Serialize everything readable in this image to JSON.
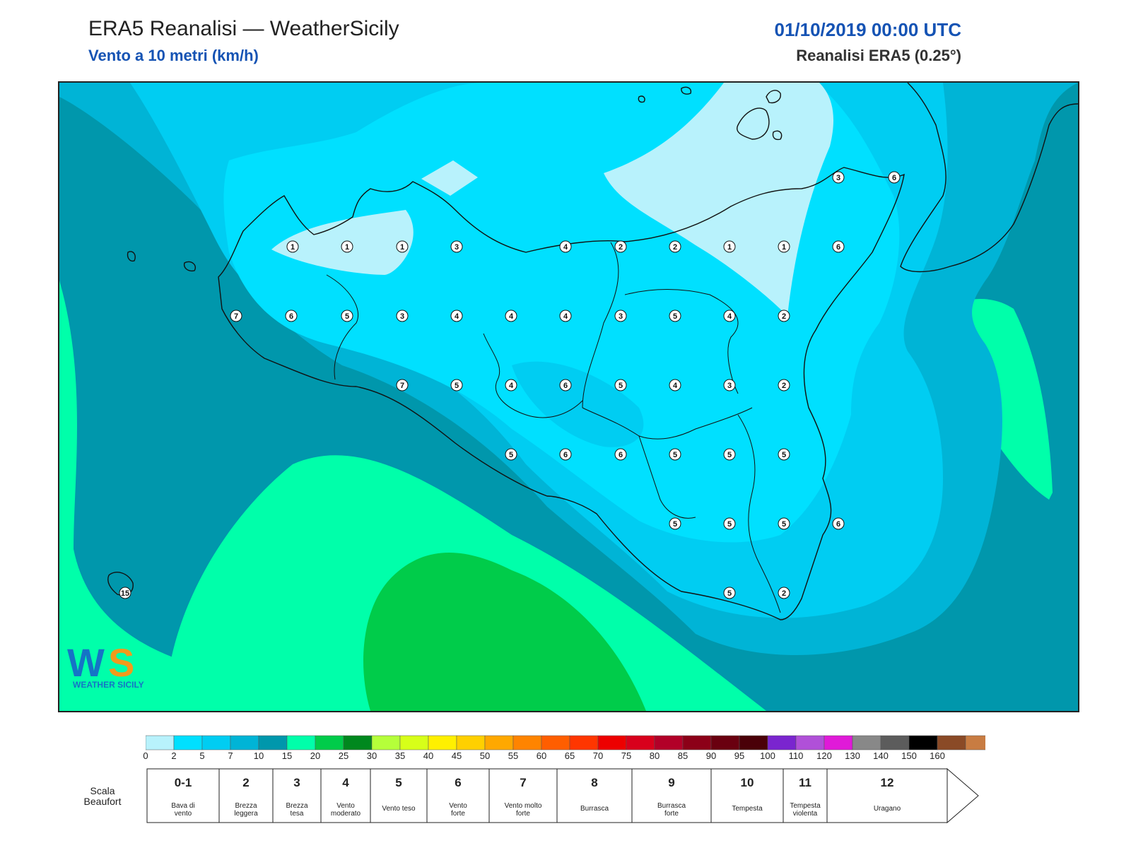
{
  "header": {
    "title": "ERA5 Reanalisi — WeatherSicily",
    "subtitle": "Vento a 10 metri (km/h)",
    "datetime": "01/10/2019 00:00 UTC",
    "product": "Reanalisi ERA5 (0.25°)"
  },
  "map": {
    "station_values": [
      {
        "id": "s01",
        "value": "1"
      },
      {
        "id": "s02",
        "value": "1"
      },
      {
        "id": "s03",
        "value": "1"
      },
      {
        "id": "s04",
        "value": "3"
      },
      {
        "id": "s05",
        "value": "4"
      },
      {
        "id": "s06",
        "value": "2"
      },
      {
        "id": "s07",
        "value": "2"
      },
      {
        "id": "s08",
        "value": "1"
      },
      {
        "id": "s09",
        "value": "1"
      },
      {
        "id": "s10",
        "value": "6"
      },
      {
        "id": "s11",
        "value": "3"
      },
      {
        "id": "s12",
        "value": "6"
      },
      {
        "id": "s13",
        "value": "7"
      },
      {
        "id": "s14",
        "value": "6"
      },
      {
        "id": "s15",
        "value": "5"
      },
      {
        "id": "s16",
        "value": "3"
      },
      {
        "id": "s17",
        "value": "4"
      },
      {
        "id": "s18",
        "value": "4"
      },
      {
        "id": "s19",
        "value": "4"
      },
      {
        "id": "s20",
        "value": "3"
      },
      {
        "id": "s21",
        "value": "5"
      },
      {
        "id": "s22",
        "value": "4"
      },
      {
        "id": "s23",
        "value": "2"
      },
      {
        "id": "s24",
        "value": "7"
      },
      {
        "id": "s25",
        "value": "5"
      },
      {
        "id": "s26",
        "value": "4"
      },
      {
        "id": "s27",
        "value": "6"
      },
      {
        "id": "s28",
        "value": "5"
      },
      {
        "id": "s29",
        "value": "4"
      },
      {
        "id": "s30",
        "value": "3"
      },
      {
        "id": "s31",
        "value": "2"
      },
      {
        "id": "s32",
        "value": "5"
      },
      {
        "id": "s33",
        "value": "6"
      },
      {
        "id": "s34",
        "value": "6"
      },
      {
        "id": "s35",
        "value": "5"
      },
      {
        "id": "s36",
        "value": "5"
      },
      {
        "id": "s37",
        "value": "5"
      },
      {
        "id": "s38",
        "value": "5"
      },
      {
        "id": "s39",
        "value": "5"
      },
      {
        "id": "s40",
        "value": "5"
      },
      {
        "id": "s41",
        "value": "6"
      },
      {
        "id": "s42",
        "value": "5"
      },
      {
        "id": "s43",
        "value": "2"
      },
      {
        "id": "s44",
        "value": "15"
      }
    ],
    "contour_colors": [
      "#b8f2fc",
      "#00e0ff",
      "#00cdf2",
      "#00b4d6",
      "#0097ac",
      "#00ffaa",
      "#00cc4a",
      "#00881e"
    ]
  },
  "colorbar": {
    "ticks": [
      "0",
      "2",
      "5",
      "7",
      "10",
      "15",
      "20",
      "25",
      "30",
      "35",
      "40",
      "45",
      "50",
      "55",
      "60",
      "65",
      "70",
      "75",
      "80",
      "85",
      "90",
      "95",
      "100",
      "110",
      "120",
      "130",
      "140",
      "150",
      "160"
    ],
    "colors": [
      "#b8f2fc",
      "#00e0ff",
      "#00cdf2",
      "#00b4d6",
      "#0097ac",
      "#00ffaa",
      "#00cc4a",
      "#00881e",
      "#b5ff3a",
      "#d7ff19",
      "#fff000",
      "#ffd000",
      "#ffa800",
      "#ff8400",
      "#ff5e00",
      "#ff3600",
      "#ed0000",
      "#d8001c",
      "#b20028",
      "#8c0018",
      "#6a0010",
      "#4a0008",
      "#7a25cf",
      "#b050d8",
      "#e01ad8",
      "#888888",
      "#5c5c5c",
      "#000000",
      "#8a4a26",
      "#c87c42"
    ]
  },
  "beaufort": {
    "label": "Scala Beaufort",
    "classes": [
      {
        "num": "0-1",
        "desc1": "Bava di",
        "desc2": "vento"
      },
      {
        "num": "2",
        "desc1": "Brezza",
        "desc2": "leggera"
      },
      {
        "num": "3",
        "desc1": "Brezza",
        "desc2": "tesa"
      },
      {
        "num": "4",
        "desc1": "Vento",
        "desc2": "moderato"
      },
      {
        "num": "5",
        "desc1": "Vento teso",
        "desc2": ""
      },
      {
        "num": "6",
        "desc1": "Vento",
        "desc2": "forte"
      },
      {
        "num": "7",
        "desc1": "Vento molto",
        "desc2": "forte"
      },
      {
        "num": "8",
        "desc1": "Burrasca",
        "desc2": ""
      },
      {
        "num": "9",
        "desc1": "Burrasca",
        "desc2": "forte"
      },
      {
        "num": "10",
        "desc1": "Tempesta",
        "desc2": ""
      },
      {
        "num": "11",
        "desc1": "Tempesta",
        "desc2": "violenta"
      },
      {
        "num": "12",
        "desc1": "Uragano",
        "desc2": ""
      }
    ]
  },
  "logo": {
    "text": "WEATHER SICILY",
    "mark": "WS"
  }
}
